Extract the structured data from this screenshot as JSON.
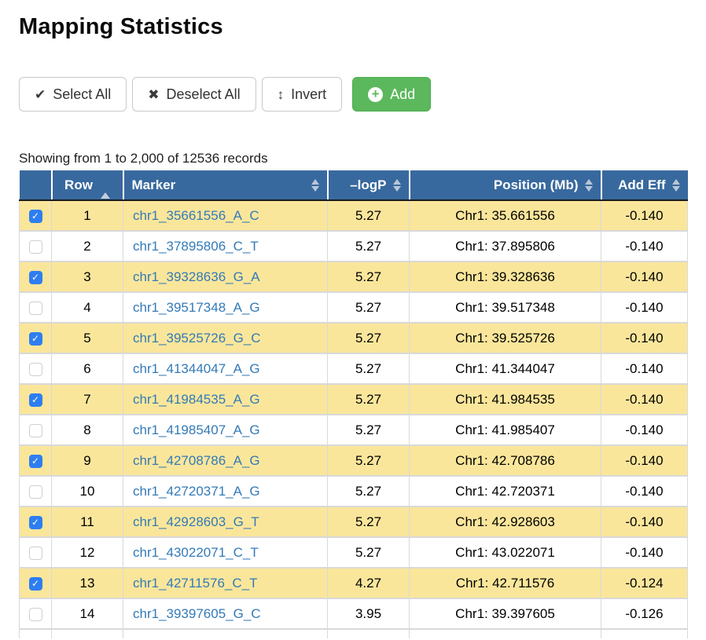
{
  "page": {
    "title": "Mapping Statistics"
  },
  "toolbar": {
    "select_all_label": "Select All",
    "deselect_all_label": "Deselect All",
    "invert_label": "Invert",
    "add_label": "Add"
  },
  "icons": {
    "check": "✔",
    "x": "✖",
    "updown_arrow": "↕",
    "plus": "+",
    "checkbox_check": "✓"
  },
  "summary": {
    "text": "Showing from 1 to 2,000 of 12536 records"
  },
  "table": {
    "headers": {
      "checkbox": "",
      "row": "Row",
      "marker": "Marker",
      "logp": "–logP",
      "position": "Position (Mb)",
      "add_eff": "Add Eff"
    },
    "sort": {
      "active_column": "row",
      "direction": "asc"
    },
    "rows": [
      {
        "row": "1",
        "marker": "chr1_35661556_A_C",
        "logp": "5.27",
        "position": "Chr1: 35.661556",
        "add_eff": "-0.140",
        "checked": true
      },
      {
        "row": "2",
        "marker": "chr1_37895806_C_T",
        "logp": "5.27",
        "position": "Chr1: 37.895806",
        "add_eff": "-0.140",
        "checked": false
      },
      {
        "row": "3",
        "marker": "chr1_39328636_G_A",
        "logp": "5.27",
        "position": "Chr1: 39.328636",
        "add_eff": "-0.140",
        "checked": true
      },
      {
        "row": "4",
        "marker": "chr1_39517348_A_G",
        "logp": "5.27",
        "position": "Chr1: 39.517348",
        "add_eff": "-0.140",
        "checked": false
      },
      {
        "row": "5",
        "marker": "chr1_39525726_G_C",
        "logp": "5.27",
        "position": "Chr1: 39.525726",
        "add_eff": "-0.140",
        "checked": true
      },
      {
        "row": "6",
        "marker": "chr1_41344047_A_G",
        "logp": "5.27",
        "position": "Chr1: 41.344047",
        "add_eff": "-0.140",
        "checked": false
      },
      {
        "row": "7",
        "marker": "chr1_41984535_A_G",
        "logp": "5.27",
        "position": "Chr1: 41.984535",
        "add_eff": "-0.140",
        "checked": true
      },
      {
        "row": "8",
        "marker": "chr1_41985407_A_G",
        "logp": "5.27",
        "position": "Chr1: 41.985407",
        "add_eff": "-0.140",
        "checked": false
      },
      {
        "row": "9",
        "marker": "chr1_42708786_A_G",
        "logp": "5.27",
        "position": "Chr1: 42.708786",
        "add_eff": "-0.140",
        "checked": true
      },
      {
        "row": "10",
        "marker": "chr1_42720371_A_G",
        "logp": "5.27",
        "position": "Chr1: 42.720371",
        "add_eff": "-0.140",
        "checked": false
      },
      {
        "row": "11",
        "marker": "chr1_42928603_G_T",
        "logp": "5.27",
        "position": "Chr1: 42.928603",
        "add_eff": "-0.140",
        "checked": true
      },
      {
        "row": "12",
        "marker": "chr1_43022071_C_T",
        "logp": "5.27",
        "position": "Chr1: 43.022071",
        "add_eff": "-0.140",
        "checked": false
      },
      {
        "row": "13",
        "marker": "chr1_42711576_C_T",
        "logp": "4.27",
        "position": "Chr1: 42.711576",
        "add_eff": "-0.124",
        "checked": true
      },
      {
        "row": "14",
        "marker": "chr1_39397605_G_C",
        "logp": "3.95",
        "position": "Chr1: 39.397605",
        "add_eff": "-0.126",
        "checked": false
      }
    ]
  },
  "colors": {
    "header_bg": "#38699e",
    "selected_row_bg": "#fae69b",
    "link": "#337ab7",
    "add_button_bg": "#5cb85c",
    "checkbox_checked": "#2e7ef1",
    "header_sort_icon": "#b9c6d8"
  }
}
